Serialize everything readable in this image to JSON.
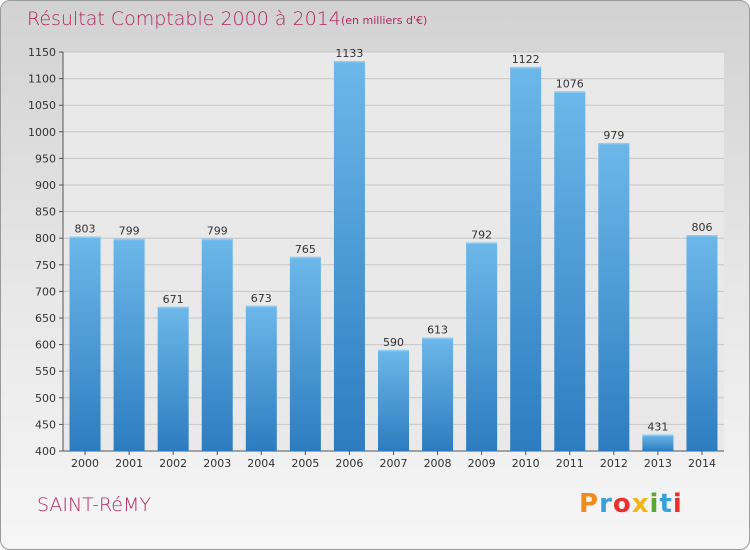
{
  "header": {
    "title": "Résultat Comptable 2000 à 2014",
    "subtitle": "(en milliers d'€)"
  },
  "footer": {
    "location": "SAINT-RéMY",
    "brand_logo": "Proxiti",
    "brand_colors": [
      "#f08a1c",
      "#3aa0d8",
      "#e8322e",
      "#f2b515",
      "#5aa832",
      "#3aa0d8",
      "#e8322e"
    ]
  },
  "colors": {
    "title": "#b0285e",
    "bar_light": "#6cb8ea",
    "bar_dark": "#2d7cbf",
    "grid": "#c8c8c8",
    "plot_bg": "#e9e9e9"
  },
  "chart_data": {
    "type": "bar",
    "title": "Résultat Comptable 2000 à 2014",
    "subtitle": "(en milliers d'€)",
    "categories": [
      "2000",
      "2001",
      "2002",
      "2003",
      "2004",
      "2005",
      "2006",
      "2007",
      "2008",
      "2009",
      "2010",
      "2011",
      "2012",
      "2013",
      "2014"
    ],
    "values": [
      803,
      799,
      671,
      799,
      673,
      765,
      1133,
      590,
      613,
      792,
      1122,
      1076,
      979,
      431,
      806
    ],
    "ylim": [
      400,
      1150
    ],
    "yticks": [
      400,
      450,
      500,
      550,
      600,
      650,
      700,
      750,
      800,
      850,
      900,
      950,
      1000,
      1050,
      1100,
      1150
    ],
    "grid": true,
    "data_labels": true
  }
}
